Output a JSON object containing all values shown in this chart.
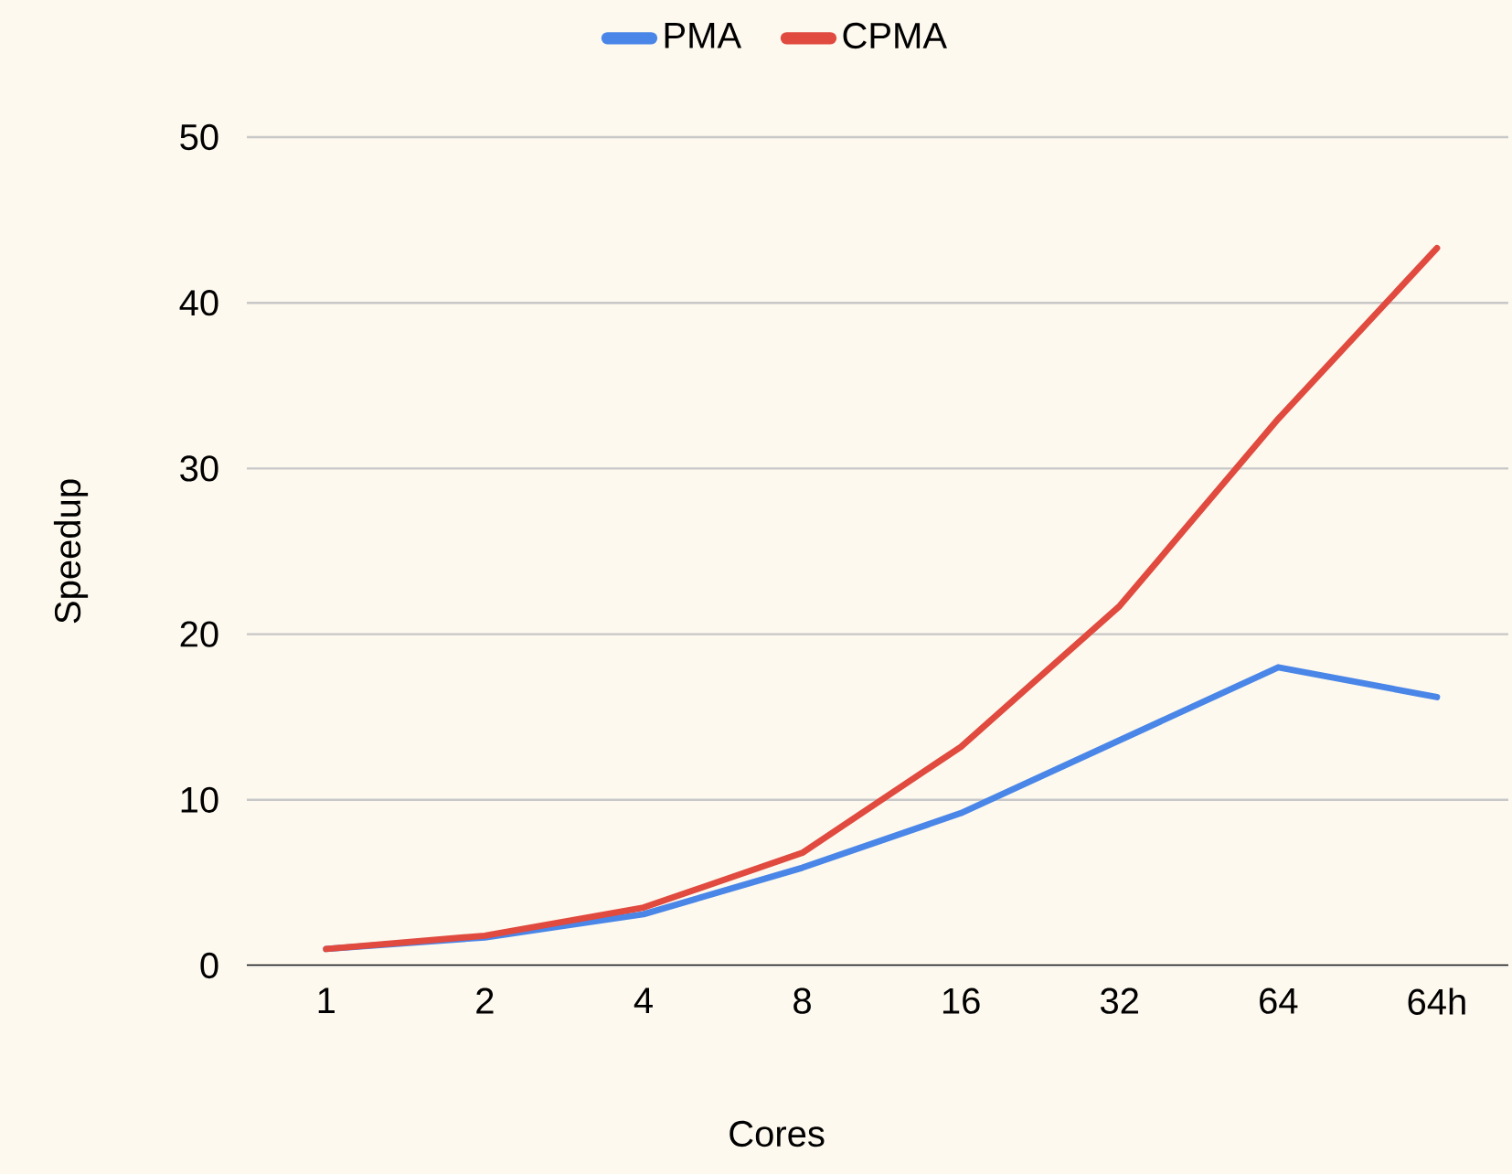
{
  "chart_data": {
    "type": "line",
    "xlabel": "Cores",
    "ylabel": "Speedup",
    "categories": [
      "1",
      "2",
      "4",
      "8",
      "16",
      "32",
      "64",
      "64h"
    ],
    "series": [
      {
        "name": "PMA",
        "color": "#4a86e8",
        "values": [
          1.0,
          1.7,
          3.1,
          5.9,
          9.2,
          13.6,
          18.0,
          16.2
        ]
      },
      {
        "name": "CPMA",
        "color": "#e04a3f",
        "values": [
          1.0,
          1.8,
          3.5,
          6.8,
          13.2,
          21.7,
          33.0,
          43.3
        ]
      }
    ],
    "ylim": [
      0,
      50
    ],
    "yticks": [
      0,
      10,
      20,
      30,
      40,
      50
    ],
    "grid": "y",
    "legend": "top",
    "marker": "none",
    "line_style": "solid"
  }
}
